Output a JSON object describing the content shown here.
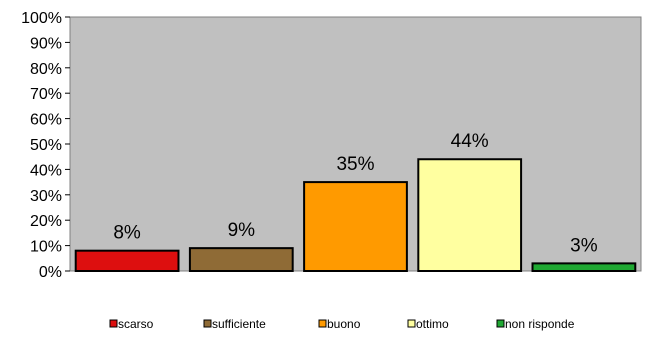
{
  "chart_data": {
    "type": "bar",
    "categories": [
      "scarso",
      "sufficiente",
      "buono",
      "ottimo",
      "non risponde"
    ],
    "values": [
      8,
      9,
      35,
      44,
      3
    ],
    "value_labels": [
      "8%",
      "9%",
      "35%",
      "44%",
      "3%"
    ],
    "colors": [
      "#dd0f0f",
      "#8f6b36",
      "#ff9a00",
      "#ffffa0",
      "#1fa832"
    ],
    "legend_labels": [
      "scarso",
      "sufficiente",
      "buono",
      "ottimo",
      "non risponde"
    ],
    "ylim": [
      0,
      100
    ],
    "y_ticks": [
      "0%",
      "10%",
      "20%",
      "30%",
      "40%",
      "50%",
      "60%",
      "70%",
      "80%",
      "90%",
      "100%"
    ],
    "plot_background": "#c0c0c0",
    "grid": false,
    "legend_position": "bottom",
    "title": "",
    "xlabel": "",
    "ylabel": ""
  }
}
